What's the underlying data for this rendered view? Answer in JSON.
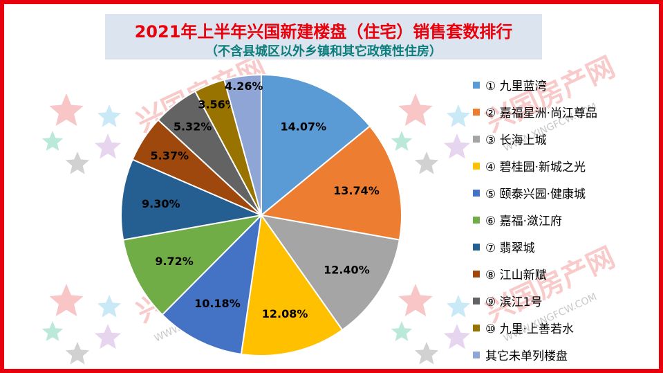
{
  "title": "2021年上半年兴国新建楼盘（住宅）销售套数排行",
  "subtitle": "（不含县城区以外乡镇和其它政策性住房）",
  "watermark": {
    "text": "兴国房产网",
    "url": "WWW.XINGFCW.COM"
  },
  "chart_data": {
    "type": "pie",
    "title": "2021年上半年兴国新建楼盘（住宅）销售套数排行",
    "categories": [
      "① 九里蓝湾",
      "② 嘉福星洲·尚江尊品",
      "③ 长海上城",
      "④ 碧桂园·新城之光",
      "⑤ 颐泰兴园·健康城",
      "⑥ 嘉福·潋江府",
      "⑦ 翡翠城",
      "⑧ 江山新赋",
      "⑨ 滨江1号",
      "⑩ 九里·上善若水",
      "其它未单列楼盘"
    ],
    "values": [
      14.07,
      13.74,
      12.4,
      12.08,
      10.18,
      9.72,
      9.3,
      5.37,
      5.32,
      3.56,
      4.26
    ],
    "value_labels": [
      "14.07%",
      "13.74%",
      "12.40%",
      "12.08%",
      "10.18%",
      "9.72%",
      "9.30%",
      "5.37%",
      "5.32%",
      "3.56%",
      "4.26%"
    ],
    "colors": [
      "#5b9bd5",
      "#ed7d31",
      "#a5a5a5",
      "#ffc000",
      "#4472c4",
      "#70ad47",
      "#255e91",
      "#9e480e",
      "#636363",
      "#997300",
      "#8fa5d6"
    ],
    "legend_position": "right",
    "start_angle": "12 o'clock",
    "direction": "clockwise"
  }
}
